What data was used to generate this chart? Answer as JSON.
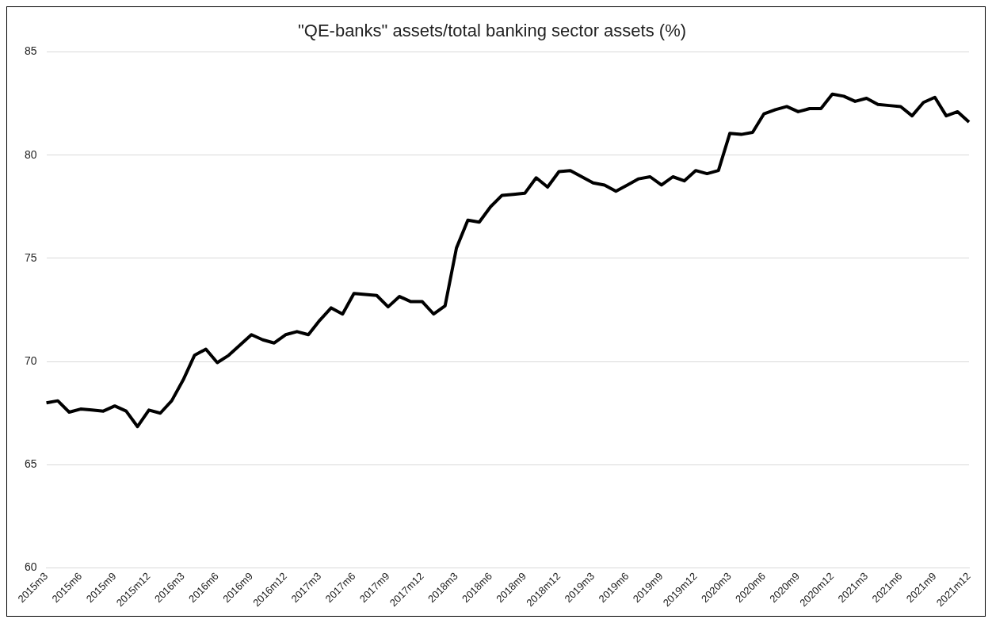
{
  "chart_data": {
    "type": "line",
    "title": "\"QE-banks\" assets/total banking sector assets (%)",
    "categories": [
      "2015m3",
      null,
      null,
      "2015m6",
      null,
      null,
      "2015m9",
      null,
      null,
      "2015m12",
      null,
      null,
      "2016m3",
      null,
      null,
      "2016m6",
      null,
      null,
      "2016m9",
      null,
      null,
      "2016m12",
      null,
      null,
      "2017m3",
      null,
      null,
      "2017m6",
      null,
      null,
      "2017m9",
      null,
      null,
      "2017m12",
      null,
      null,
      "2018m3",
      null,
      null,
      "2018m6",
      null,
      null,
      "2018m9",
      null,
      null,
      "2018m12",
      null,
      null,
      "2019m3",
      null,
      null,
      "2019m6",
      null,
      null,
      "2019m9",
      null,
      null,
      "2019m12",
      null,
      null,
      "2020m3",
      null,
      null,
      "2020m6",
      null,
      null,
      "2020m9",
      null,
      null,
      "2020m12",
      null,
      null,
      "2021m3",
      null,
      null,
      "2021m6",
      null,
      null,
      "2021m9",
      null,
      null,
      "2021m12"
    ],
    "series": [
      {
        "color": "#000000",
        "values": [
          68.0,
          68.1,
          67.55,
          67.7,
          67.65,
          67.6,
          67.85,
          67.6,
          66.85,
          67.65,
          67.5,
          68.1,
          69.1,
          70.3,
          70.6,
          69.95,
          70.3,
          70.8,
          71.3,
          71.05,
          70.9,
          71.3,
          71.45,
          71.3,
          72.0,
          72.6,
          72.3,
          73.3,
          73.25,
          73.2,
          72.65,
          73.15,
          72.9,
          72.9,
          72.3,
          72.7,
          75.5,
          76.85,
          76.75,
          77.5,
          78.05,
          78.1,
          78.15,
          78.9,
          78.45,
          79.2,
          79.25,
          78.95,
          78.65,
          78.55,
          78.25,
          78.55,
          78.85,
          78.95,
          78.55,
          78.95,
          78.75,
          79.25,
          79.1,
          79.25,
          81.05,
          81.0,
          81.1,
          82.0,
          82.2,
          82.35,
          82.1,
          82.25,
          82.25,
          82.95,
          82.85,
          82.6,
          82.75,
          82.45,
          82.4,
          82.35,
          81.9,
          82.55,
          82.8,
          81.9,
          82.1,
          81.6
        ]
      }
    ],
    "ylim": [
      60,
      85
    ],
    "yticks": [
      60,
      65,
      70,
      75,
      80,
      85
    ],
    "grid": "y",
    "legend": false,
    "marker": "none",
    "line_style": "solid"
  }
}
